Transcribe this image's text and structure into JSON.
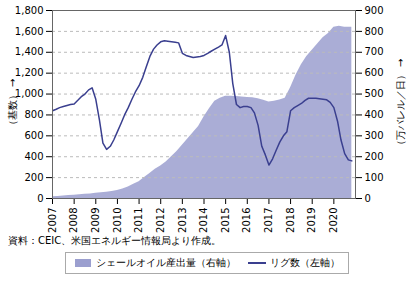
{
  "chart_data": {
    "type": "line",
    "ylabel": "（基数）",
    "y2label": "（万バレル／日）",
    "caption": "資料：CEIC、米国エネルギー情報局より作成。",
    "xlim": [
      2007,
      2021
    ],
    "xticks": [
      2007,
      2008,
      2009,
      2010,
      2011,
      2012,
      2013,
      2014,
      2015,
      2016,
      2017,
      2018,
      2019,
      2020
    ],
    "ylim": [
      0,
      1800
    ],
    "yticks": [
      0,
      200,
      400,
      600,
      800,
      {
        "value": 1000,
        "label": "1,000"
      },
      {
        "value": 1200,
        "label": "1,200"
      },
      {
        "value": 1400,
        "label": "1,400"
      },
      {
        "value": 1600,
        "label": "1,600"
      },
      {
        "value": 1800,
        "label": "1,800"
      }
    ],
    "y2lim": [
      0,
      900
    ],
    "y2ticks": [
      0,
      100,
      200,
      300,
      400,
      500,
      600,
      700,
      800,
      900
    ],
    "grid": true,
    "legend": "bottom",
    "series": [
      {
        "name": "シェールオイル産出量（右軸）",
        "type": "area",
        "axis": "y2",
        "color": "#9b9fcf",
        "x": [
          2007.0,
          2007.25,
          2007.5,
          2007.75,
          2008.0,
          2008.25,
          2008.5,
          2008.75,
          2009.0,
          2009.25,
          2009.5,
          2009.75,
          2010.0,
          2010.25,
          2010.5,
          2010.75,
          2011.0,
          2011.25,
          2011.5,
          2011.75,
          2012.0,
          2012.25,
          2012.5,
          2012.75,
          2013.0,
          2013.25,
          2013.5,
          2013.75,
          2014.0,
          2014.25,
          2014.5,
          2014.75,
          2015.0,
          2015.25,
          2015.5,
          2015.75,
          2016.0,
          2016.25,
          2016.5,
          2016.75,
          2017.0,
          2017.25,
          2017.5,
          2017.75,
          2018.0,
          2018.25,
          2018.5,
          2018.75,
          2019.0,
          2019.25,
          2019.5,
          2019.75,
          2020.0,
          2020.25,
          2020.5,
          2020.83
        ],
        "values": [
          8,
          10,
          12,
          14,
          16,
          18,
          20,
          22,
          25,
          28,
          30,
          33,
          38,
          45,
          55,
          68,
          80,
          100,
          120,
          140,
          155,
          175,
          200,
          225,
          255,
          285,
          315,
          345,
          390,
          430,
          465,
          480,
          490,
          490,
          488,
          486,
          484,
          482,
          478,
          470,
          462,
          465,
          472,
          480,
          530,
          590,
          640,
          680,
          710,
          740,
          770,
          790,
          820,
          825,
          820,
          820
        ]
      },
      {
        "name": "リグ数（左軸）",
        "type": "line",
        "axis": "y",
        "color": "#3a3f8f",
        "x": [
          2007.0,
          2007.17,
          2007.33,
          2007.5,
          2007.67,
          2007.83,
          2008.0,
          2008.17,
          2008.33,
          2008.5,
          2008.67,
          2008.83,
          2009.0,
          2009.17,
          2009.33,
          2009.5,
          2009.67,
          2009.83,
          2010.0,
          2010.17,
          2010.33,
          2010.5,
          2010.67,
          2010.83,
          2011.0,
          2011.17,
          2011.33,
          2011.5,
          2011.67,
          2011.83,
          2012.0,
          2012.17,
          2012.33,
          2012.5,
          2012.67,
          2012.83,
          2013.0,
          2013.17,
          2013.33,
          2013.5,
          2013.67,
          2013.83,
          2014.0,
          2014.17,
          2014.33,
          2014.5,
          2014.67,
          2014.83,
          2015.0,
          2015.17,
          2015.33,
          2015.5,
          2015.67,
          2015.83,
          2016.0,
          2016.17,
          2016.33,
          2016.5,
          2016.67,
          2016.83,
          2017.0,
          2017.17,
          2017.33,
          2017.5,
          2017.67,
          2017.83,
          2018.0,
          2018.17,
          2018.33,
          2018.5,
          2018.67,
          2018.83,
          2019.0,
          2019.17,
          2019.33,
          2019.5,
          2019.67,
          2019.83,
          2020.0,
          2020.17,
          2020.33,
          2020.5,
          2020.67,
          2020.83
        ],
        "values": [
          840,
          855,
          870,
          880,
          890,
          900,
          905,
          940,
          975,
          1000,
          1040,
          1060,
          950,
          750,
          530,
          470,
          500,
          560,
          640,
          720,
          800,
          870,
          950,
          1020,
          1080,
          1160,
          1260,
          1360,
          1430,
          1470,
          1500,
          1510,
          1505,
          1500,
          1495,
          1490,
          1390,
          1370,
          1360,
          1350,
          1355,
          1360,
          1370,
          1390,
          1410,
          1430,
          1450,
          1470,
          1560,
          1400,
          1100,
          900,
          870,
          880,
          880,
          870,
          820,
          700,
          500,
          420,
          320,
          380,
          460,
          540,
          600,
          640,
          840,
          870,
          890,
          910,
          940,
          960,
          960,
          960,
          955,
          950,
          945,
          920,
          870,
          740,
          560,
          430,
          370,
          360
        ]
      }
    ]
  }
}
